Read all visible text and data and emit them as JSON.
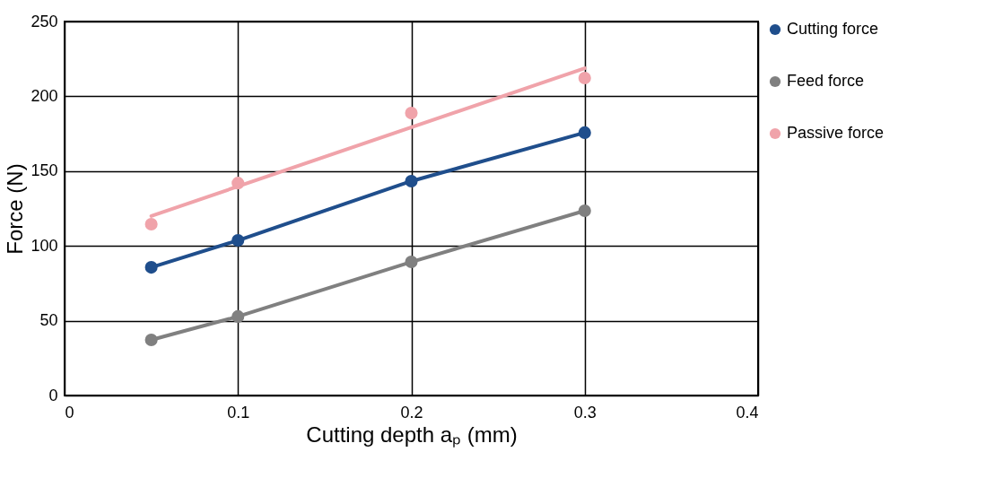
{
  "chart_data": {
    "type": "scatter",
    "xlabel": "Cutting depth aₚ (mm)",
    "ylabel": "Force (N)",
    "xlim": [
      0,
      0.4
    ],
    "xticks": [
      0,
      0.1,
      0.2,
      0.3,
      0.4
    ],
    "ylim": [
      0,
      250
    ],
    "yticks": [
      0,
      50,
      100,
      150,
      200,
      250
    ],
    "grid": true,
    "legend": "right",
    "marker": "circle",
    "series": [
      {
        "name": "Cutting force",
        "type": "line",
        "color": "#1f4e8c",
        "x": [
          0.05,
          0.1,
          0.2,
          0.3
        ],
        "values": [
          85.7,
          103.7,
          143.3,
          175.7
        ]
      },
      {
        "name": "Feed force",
        "type": "line",
        "color": "#808080",
        "x": [
          0.05,
          0.1,
          0.2,
          0.3
        ],
        "values": [
          37.2,
          52.8,
          89.3,
          123.5
        ]
      },
      {
        "name": "Passive force",
        "color": "#f0a3aa",
        "x": [
          0.05,
          0.1,
          0.2,
          0.3
        ],
        "values": [
          114.5,
          142,
          188.8,
          212.2
        ]
      },
      {
        "type": "line",
        "color": "#f0a3aa",
        "marker": "none",
        "x": [
          0.05,
          0.3
        ],
        "values": [
          120,
          218.8
        ]
      }
    ]
  }
}
